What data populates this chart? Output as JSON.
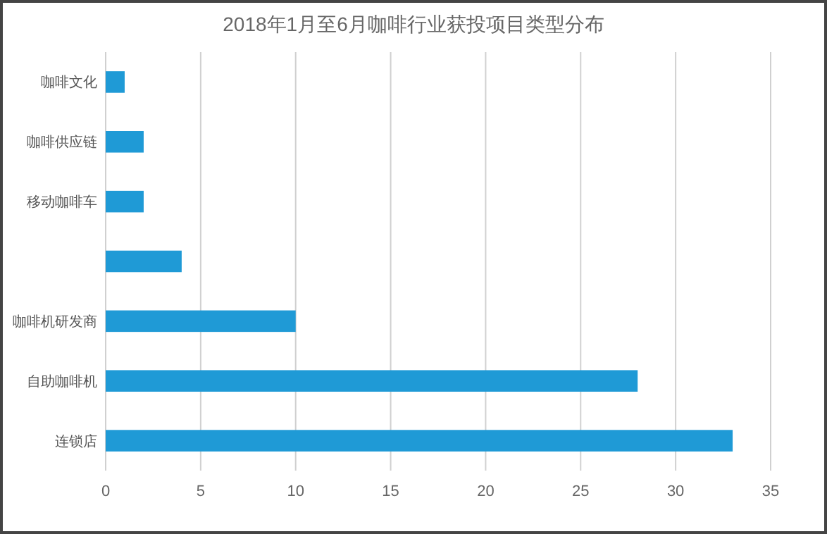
{
  "chart_data": {
    "type": "bar",
    "orientation": "horizontal",
    "title": "2018年1月至6月咖啡行业获投项目类型分布",
    "categories": [
      "咖啡文化",
      "咖啡供应链",
      "移动咖啡车",
      null,
      "咖啡机研发商",
      "自助咖啡机",
      "连锁店"
    ],
    "values": [
      1,
      2,
      2,
      4,
      10,
      28,
      33
    ],
    "color": "#1f9ad6",
    "xlim": [
      0,
      35
    ],
    "xticks": [
      0,
      5,
      10,
      15,
      20,
      25,
      30,
      35
    ],
    "grid": "x"
  }
}
